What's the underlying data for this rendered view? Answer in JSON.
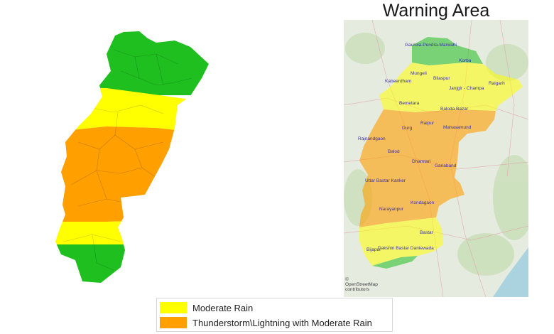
{
  "title": "Warning Area",
  "colors": {
    "no_warning": "#1fbf1f",
    "moderate_rain": "#ffff00",
    "thunderstorm": "#ff9f00"
  },
  "legend": [
    {
      "label": "Moderate Rain",
      "color": "#ffff00"
    },
    {
      "label": "Thunderstorm\\Lightning with Moderate Rain",
      "color": "#ff9f00"
    }
  ],
  "districts": [
    {
      "name": "Gaurela-Pendra-Marwahi",
      "warning": "none"
    },
    {
      "name": "Korba",
      "warning": "moderate_rain"
    },
    {
      "name": "Mungeli",
      "warning": "moderate_rain"
    },
    {
      "name": "Bilaspur",
      "warning": "moderate_rain"
    },
    {
      "name": "Kabeerdham",
      "warning": "moderate_rain"
    },
    {
      "name": "Raigarh",
      "warning": "moderate_rain"
    },
    {
      "name": "Janjgir - Champa",
      "warning": "moderate_rain"
    },
    {
      "name": "Bemetara",
      "warning": "thunderstorm"
    },
    {
      "name": "Baloda Bazar",
      "warning": "thunderstorm"
    },
    {
      "name": "Raipur",
      "warning": "thunderstorm"
    },
    {
      "name": "Durg",
      "warning": "thunderstorm"
    },
    {
      "name": "Mahasamund",
      "warning": "thunderstorm"
    },
    {
      "name": "Rajnandgaon",
      "warning": "thunderstorm"
    },
    {
      "name": "Balod",
      "warning": "thunderstorm"
    },
    {
      "name": "Dhamtari",
      "warning": "thunderstorm"
    },
    {
      "name": "Gariaband",
      "warning": "thunderstorm"
    },
    {
      "name": "Uttar Bastar Kanker",
      "warning": "thunderstorm"
    },
    {
      "name": "Kondagaon",
      "warning": "thunderstorm"
    },
    {
      "name": "Narayanpur",
      "warning": "thunderstorm"
    },
    {
      "name": "Bastar",
      "warning": "moderate_rain"
    },
    {
      "name": "Bijapur",
      "warning": "moderate_rain"
    },
    {
      "name": "Dakshin Bastar Dantewada",
      "warning": "moderate_rain"
    }
  ],
  "attribution": "© OpenStreetMap contributors"
}
